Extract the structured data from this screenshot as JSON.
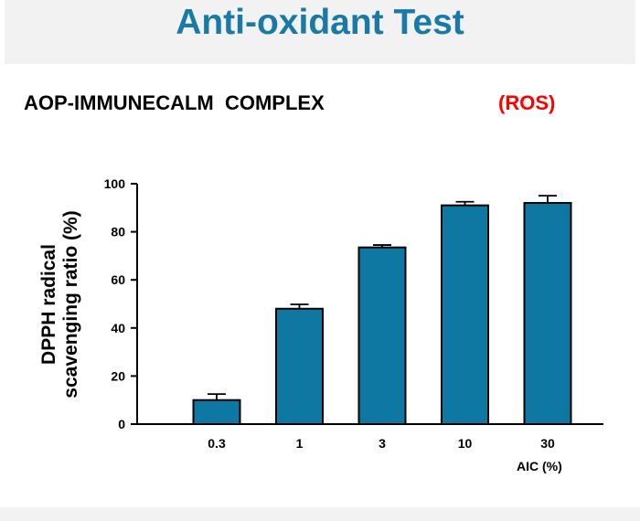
{
  "header": {
    "title": "Anti-oxidant Test",
    "subtitle": "AOP-IMMUNECALM  COMPLEX",
    "tag": "(ROS)"
  },
  "colors": {
    "title": "#1a7aa6",
    "tag": "#ff0000",
    "bar_fill": "#0e77a2",
    "band": "#f2f2f2"
  },
  "chart_data": {
    "type": "bar",
    "categories": [
      "0.3",
      "1",
      "3",
      "10",
      "30"
    ],
    "values": [
      10,
      48,
      73.5,
      91,
      92
    ],
    "errors": [
      2.5,
      1.8,
      1.0,
      1.5,
      3.0
    ],
    "xlabel": "AIC (%)",
    "ylabel_lines": [
      "DPPH radical",
      "scavenging ratio (%)"
    ],
    "ylim": [
      0,
      100
    ],
    "yticks": [
      0,
      20,
      40,
      60,
      80,
      100
    ],
    "grid": false,
    "legend": "none"
  }
}
